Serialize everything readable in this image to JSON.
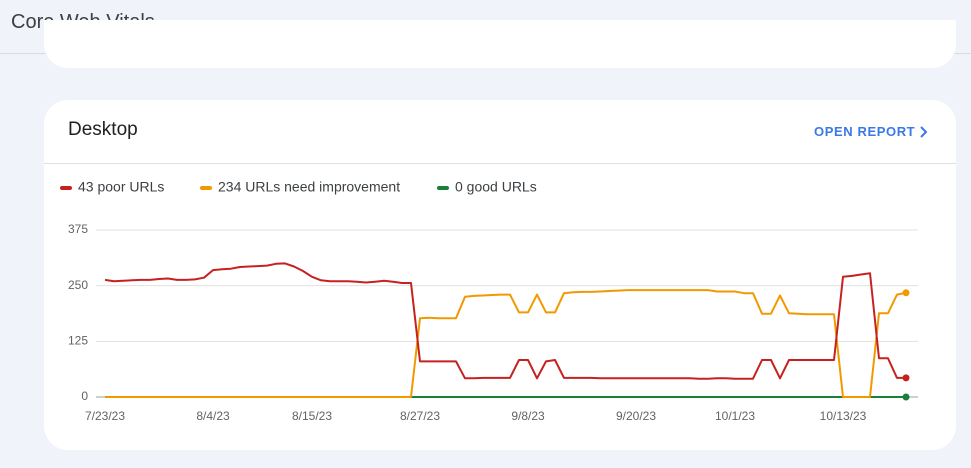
{
  "header": {
    "title": "Core Web Vitals"
  },
  "card": {
    "title": "Desktop",
    "link": "OPEN REPORT"
  },
  "chart_data": {
    "type": "line",
    "categories": [
      "7/23/23",
      null,
      null,
      null,
      null,
      null,
      null,
      null,
      null,
      null,
      null,
      null,
      "8/4/23",
      null,
      null,
      null,
      null,
      null,
      null,
      null,
      null,
      null,
      null,
      "8/15/23",
      null,
      null,
      null,
      null,
      null,
      null,
      null,
      null,
      null,
      null,
      null,
      "8/27/23",
      null,
      null,
      null,
      null,
      null,
      null,
      null,
      null,
      null,
      null,
      null,
      "9/8/23",
      null,
      null,
      null,
      null,
      null,
      null,
      null,
      null,
      null,
      null,
      null,
      "9/20/23",
      null,
      null,
      null,
      null,
      null,
      null,
      null,
      null,
      null,
      null,
      "10/1/23",
      null,
      null,
      null,
      null,
      null,
      null,
      null,
      null,
      null,
      null,
      null,
      "10/13/23",
      null,
      null,
      null,
      null,
      null,
      null,
      null
    ],
    "series": [
      {
        "name": "43 poor URLs",
        "color": "#c5221f",
        "values": [
          263,
          260,
          261,
          262,
          263,
          263,
          265,
          266,
          263,
          263,
          264,
          268,
          285,
          287,
          288,
          292,
          293,
          294,
          295,
          299,
          300,
          293,
          283,
          270,
          262,
          260,
          260,
          260,
          259,
          257,
          259,
          261,
          259,
          256,
          256,
          80,
          80,
          80,
          80,
          80,
          42,
          42,
          43,
          43,
          43,
          43,
          83,
          83,
          42,
          80,
          83,
          43,
          43,
          43,
          43,
          42,
          42,
          42,
          42,
          42,
          42,
          42,
          42,
          42,
          42,
          42,
          41,
          41,
          42,
          42,
          41,
          41,
          41,
          83,
          83,
          42,
          83,
          83,
          83,
          83,
          83,
          83,
          270,
          272,
          275,
          278,
          87,
          87,
          43,
          43
        ]
      },
      {
        "name": "234 URLs need improvement",
        "color": "#f29900",
        "values": [
          0,
          0,
          0,
          0,
          0,
          0,
          0,
          0,
          0,
          0,
          0,
          0,
          0,
          0,
          0,
          0,
          0,
          0,
          0,
          0,
          0,
          0,
          0,
          0,
          0,
          0,
          0,
          0,
          0,
          0,
          0,
          0,
          0,
          0,
          0,
          177,
          178,
          177,
          177,
          177,
          225,
          227,
          228,
          229,
          230,
          230,
          190,
          190,
          230,
          190,
          190,
          233,
          235,
          236,
          236,
          237,
          238,
          239,
          240,
          240,
          240,
          240,
          240,
          240,
          240,
          240,
          240,
          240,
          237,
          237,
          237,
          233,
          233,
          187,
          187,
          228,
          188,
          187,
          186,
          186,
          186,
          186,
          0,
          0,
          0,
          0,
          188,
          188,
          230,
          234
        ]
      },
      {
        "name": "0 good URLs",
        "color": "#188038",
        "values": [
          0,
          0,
          0,
          0,
          0,
          0,
          0,
          0,
          0,
          0,
          0,
          0,
          0,
          0,
          0,
          0,
          0,
          0,
          0,
          0,
          0,
          0,
          0,
          0,
          0,
          0,
          0,
          0,
          0,
          0,
          0,
          0,
          0,
          0,
          0,
          0,
          0,
          0,
          0,
          0,
          0,
          0,
          0,
          0,
          0,
          0,
          0,
          0,
          0,
          0,
          0,
          0,
          0,
          0,
          0,
          0,
          0,
          0,
          0,
          0,
          0,
          0,
          0,
          0,
          0,
          0,
          0,
          0,
          0,
          0,
          0,
          0,
          0,
          0,
          0,
          0,
          0,
          0,
          0,
          0,
          0,
          0,
          0,
          0,
          0,
          0,
          0,
          0,
          0,
          0
        ]
      }
    ],
    "ylim": [
      0,
      375
    ],
    "yticks": [
      0,
      125,
      250,
      375
    ],
    "grid": true
  }
}
